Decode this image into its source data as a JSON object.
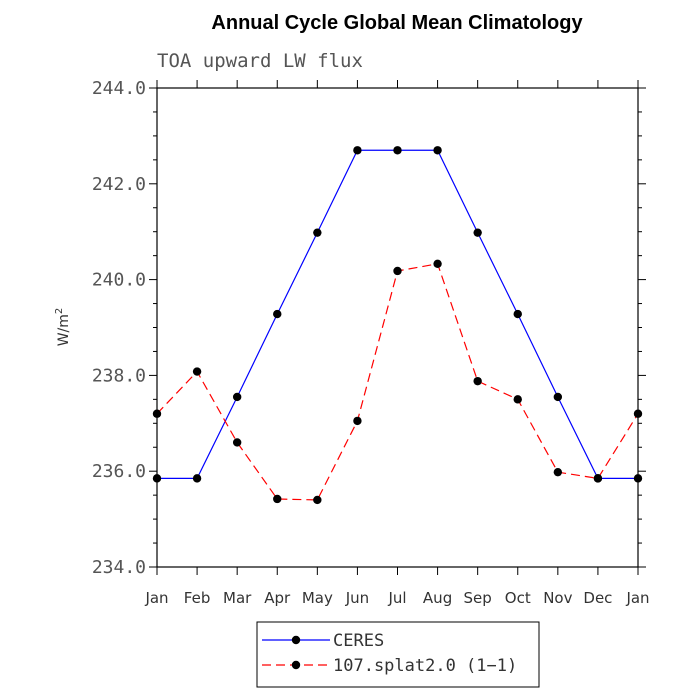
{
  "chart_data": {
    "type": "line",
    "title": "Annual Cycle Global Mean Climatology",
    "subtitle": "TOA upward LW flux",
    "ylabel": "W/m",
    "ylabel_sup": "2",
    "xlabel": "",
    "categories": [
      "Jan",
      "Feb",
      "Mar",
      "Apr",
      "May",
      "Jun",
      "Jul",
      "Aug",
      "Sep",
      "Oct",
      "Nov",
      "Dec",
      "Jan"
    ],
    "ylim": [
      234.0,
      244.0
    ],
    "yticks": [
      "234.0",
      "236.0",
      "238.0",
      "240.0",
      "242.0",
      "244.0"
    ],
    "ytick_values": [
      234,
      236,
      238,
      240,
      242,
      244
    ],
    "grid": false,
    "legend_position": "bottom-center",
    "series": [
      {
        "name": "CERES",
        "color": "#0000ff",
        "dash": "solid",
        "values": [
          235.85,
          235.85,
          237.55,
          239.28,
          240.98,
          242.7,
          242.7,
          242.7,
          240.98,
          239.28,
          237.55,
          235.85,
          235.85
        ]
      },
      {
        "name": "107.splat2.0 (1−1)",
        "color": "#ff0000",
        "dash": "dashed",
        "values": [
          237.2,
          238.08,
          236.6,
          235.42,
          235.4,
          237.05,
          240.18,
          240.33,
          237.88,
          237.5,
          235.98,
          235.85,
          237.2
        ]
      }
    ]
  }
}
